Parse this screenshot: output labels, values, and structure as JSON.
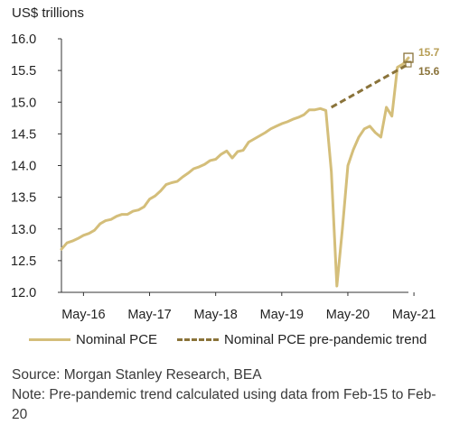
{
  "chart_data": {
    "type": "line",
    "ylabel": "US$ trillions",
    "ylim": [
      12.0,
      16.0
    ],
    "yticks": [
      "12.0",
      "12.5",
      "13.0",
      "13.5",
      "14.0",
      "14.5",
      "15.0",
      "15.5",
      "16.0"
    ],
    "xticks": [
      "May-16",
      "May-17",
      "May-18",
      "May-19",
      "May-20",
      "May-21"
    ],
    "x_range": [
      "2016-01",
      "2021-04"
    ],
    "series": [
      {
        "name": "Nominal PCE",
        "color": "#D4BE7A",
        "style": "solid",
        "x": [
          "2016-01",
          "2016-02",
          "2016-03",
          "2016-04",
          "2016-05",
          "2016-06",
          "2016-07",
          "2016-08",
          "2016-09",
          "2016-10",
          "2016-11",
          "2016-12",
          "2017-01",
          "2017-02",
          "2017-03",
          "2017-04",
          "2017-05",
          "2017-06",
          "2017-07",
          "2017-08",
          "2017-09",
          "2017-10",
          "2017-11",
          "2017-12",
          "2018-01",
          "2018-02",
          "2018-03",
          "2018-04",
          "2018-05",
          "2018-06",
          "2018-07",
          "2018-08",
          "2018-09",
          "2018-10",
          "2018-11",
          "2018-12",
          "2019-01",
          "2019-02",
          "2019-03",
          "2019-04",
          "2019-05",
          "2019-06",
          "2019-07",
          "2019-08",
          "2019-09",
          "2019-10",
          "2019-11",
          "2019-12",
          "2020-01",
          "2020-02",
          "2020-03",
          "2020-04",
          "2020-05",
          "2020-06",
          "2020-07",
          "2020-08",
          "2020-09",
          "2020-10",
          "2020-11",
          "2020-12",
          "2021-01",
          "2021-02",
          "2021-03",
          "2021-04"
        ],
        "values": [
          12.68,
          12.78,
          12.81,
          12.85,
          12.9,
          12.93,
          12.98,
          13.08,
          13.13,
          13.15,
          13.2,
          13.23,
          13.23,
          13.28,
          13.3,
          13.35,
          13.47,
          13.52,
          13.6,
          13.7,
          13.73,
          13.75,
          13.82,
          13.88,
          13.95,
          13.98,
          14.02,
          14.08,
          14.1,
          14.18,
          14.23,
          14.12,
          14.22,
          14.24,
          14.37,
          14.42,
          14.47,
          14.52,
          14.58,
          14.62,
          14.66,
          14.69,
          14.73,
          14.76,
          14.8,
          14.88,
          14.88,
          14.9,
          14.87,
          13.9,
          12.1,
          13.0,
          14.0,
          14.25,
          14.45,
          14.58,
          14.62,
          14.52,
          14.45,
          14.92,
          14.78,
          15.55,
          15.6,
          15.7
        ]
      },
      {
        "name": "Nominal PCE pre-pandemic trend",
        "color": "#8A733A",
        "style": "dashed",
        "x": [
          "2020-02",
          "2021-04"
        ],
        "values": [
          14.92,
          15.6
        ]
      }
    ],
    "annotations": [
      {
        "text": "15.7",
        "value": 15.7,
        "color": "#B79E55"
      },
      {
        "text": "15.6",
        "value": 15.6,
        "color": "#8A733A"
      }
    ],
    "grid": false,
    "legend_position": "bottom"
  },
  "footer": {
    "source": "Source: Morgan Stanley Research, BEA",
    "note": "Note: Pre-pandemic trend calculated using data from Feb-15 to Feb-20"
  }
}
